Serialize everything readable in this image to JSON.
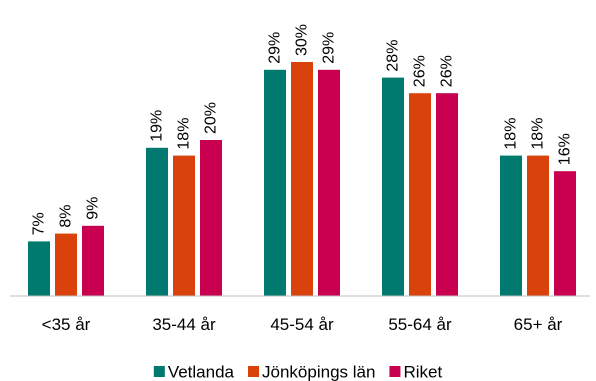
{
  "chart_data": {
    "type": "bar",
    "title": "",
    "xlabel": "",
    "ylabel": "",
    "categories": [
      "<35 år",
      "35-44 år",
      "45-54 år",
      "55-64 år",
      "65+ år"
    ],
    "ylim": [
      0,
      30
    ],
    "grid": false,
    "legend": "bottom",
    "value_suffix": "%",
    "series": [
      {
        "name": "Vetlanda",
        "values": [
          7,
          19,
          29,
          28,
          18
        ],
        "color": "#007A6E"
      },
      {
        "name": "Jönköpings län",
        "values": [
          8,
          18,
          30,
          26,
          18
        ],
        "color": "#D9420B"
      },
      {
        "name": "Riket",
        "values": [
          9,
          20,
          29,
          26,
          16
        ],
        "color": "#C8004F"
      }
    ]
  }
}
